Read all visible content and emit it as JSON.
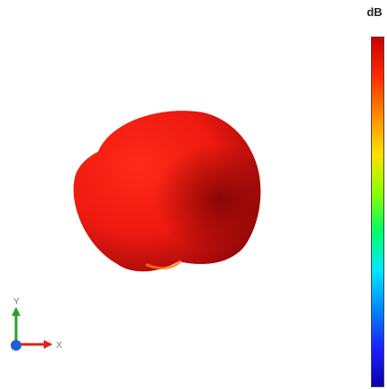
{
  "colorbar": {
    "unit_label": "dB",
    "gradient_stops": [
      "#cc0000",
      "#ff2a00",
      "#ff8a00",
      "#ffe000",
      "#8cff00",
      "#00ff66",
      "#00e8ff",
      "#0088ff",
      "#1a22ff",
      "#0a00b0"
    ]
  },
  "pattern": {
    "icon": "3d-radiation-pattern",
    "surface_colors": {
      "bright": "#ff2a18",
      "mid": "#ee1a10",
      "dark": "#9a0808",
      "rim": "#ff6a10"
    }
  },
  "triad": {
    "x_label": "X",
    "y_label": "Y",
    "x_color": "#e0201a",
    "y_color": "#2aa02a",
    "z_color": "#1f5fd0"
  }
}
